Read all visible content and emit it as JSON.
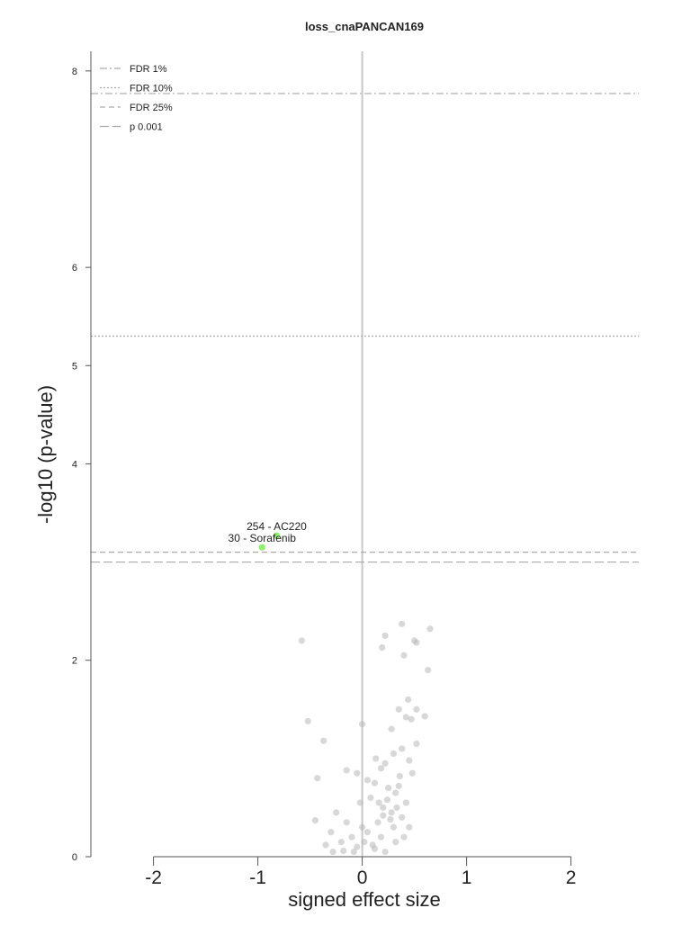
{
  "chart_data": {
    "type": "scatter",
    "title": "loss_cnaPANCAN169",
    "xlabel": "signed effect size",
    "ylabel": "-log10 (p-value)",
    "xlim": [
      -2.6,
      2.65
    ],
    "ylim": [
      0,
      8.2
    ],
    "xticks": [
      -2,
      -1,
      0,
      1,
      2
    ],
    "yticks": [
      0,
      2,
      4,
      5,
      6,
      8
    ],
    "grid": false,
    "legend_position": "top-left",
    "colors": {
      "points": "#b8b8b8",
      "highlight": "#90ee70",
      "axis": "#555555",
      "threshold": "#aaaaaa",
      "zero_line": "#c8c8c8"
    },
    "thresholds": [
      {
        "name": "FDR 1%",
        "y": 7.77,
        "dash": "dashdot"
      },
      {
        "name": "FDR 10%",
        "y": 5.3,
        "dash": "dotted"
      },
      {
        "name": "FDR 25%",
        "y": 3.1,
        "dash": "dashed"
      },
      {
        "name": "p 0.001",
        "y": 3.0,
        "dash": "longdash"
      }
    ],
    "highlighted_points": [
      {
        "label": "254 - AC220",
        "x": -0.82,
        "y": 3.27
      },
      {
        "label": "30 - Sorafenib",
        "x": -0.96,
        "y": 3.15
      }
    ],
    "points": [
      [
        -0.58,
        2.2
      ],
      [
        -0.52,
        1.38
      ],
      [
        -0.37,
        1.18
      ],
      [
        -0.43,
        0.8
      ],
      [
        -0.45,
        0.37
      ],
      [
        0.38,
        2.37
      ],
      [
        0.65,
        2.32
      ],
      [
        0.22,
        2.25
      ],
      [
        0.19,
        2.13
      ],
      [
        0.52,
        2.18
      ],
      [
        0.5,
        2.2
      ],
      [
        0.4,
        2.05
      ],
      [
        0.63,
        1.9
      ],
      [
        0.44,
        1.6
      ],
      [
        0.52,
        1.5
      ],
      [
        0.42,
        1.42
      ],
      [
        0.6,
        1.43
      ],
      [
        0.35,
        1.5
      ],
      [
        0.47,
        1.4
      ],
      [
        0.0,
        1.35
      ],
      [
        0.28,
        1.3
      ],
      [
        0.52,
        1.15
      ],
      [
        0.38,
        1.1
      ],
      [
        0.13,
        1.0
      ],
      [
        0.45,
        0.98
      ],
      [
        0.3,
        1.05
      ],
      [
        0.22,
        0.95
      ],
      [
        0.36,
        0.82
      ],
      [
        0.48,
        0.85
      ],
      [
        0.18,
        0.9
      ],
      [
        0.12,
        0.75
      ],
      [
        0.25,
        0.7
      ],
      [
        -0.15,
        0.88
      ],
      [
        -0.05,
        0.85
      ],
      [
        0.05,
        0.78
      ],
      [
        0.32,
        0.65
      ],
      [
        0.42,
        0.55
      ],
      [
        0.2,
        0.5
      ],
      [
        0.28,
        0.45
      ],
      [
        0.38,
        0.4
      ],
      [
        0.15,
        0.35
      ],
      [
        0.3,
        0.3
      ],
      [
        0.45,
        0.3
      ],
      [
        0.05,
        0.25
      ],
      [
        0.18,
        0.2
      ],
      [
        0.32,
        0.15
      ],
      [
        -0.25,
        0.45
      ],
      [
        -0.15,
        0.35
      ],
      [
        -0.3,
        0.25
      ],
      [
        -0.2,
        0.15
      ],
      [
        -0.1,
        0.2
      ],
      [
        0.0,
        0.3
      ],
      [
        -0.05,
        0.1
      ],
      [
        0.1,
        0.12
      ],
      [
        -0.28,
        0.05
      ],
      [
        -0.02,
        0.55
      ],
      [
        0.08,
        0.6
      ],
      [
        0.16,
        0.55
      ],
      [
        0.24,
        0.58
      ],
      [
        0.35,
        0.72
      ],
      [
        0.2,
        0.42
      ],
      [
        0.27,
        0.38
      ],
      [
        0.33,
        0.5
      ],
      [
        0.12,
        0.08
      ],
      [
        -0.08,
        0.05
      ],
      [
        0.02,
        0.15
      ],
      [
        -0.18,
        0.06
      ],
      [
        0.22,
        0.05
      ],
      [
        -0.35,
        0.12
      ],
      [
        0.4,
        0.2
      ]
    ]
  }
}
